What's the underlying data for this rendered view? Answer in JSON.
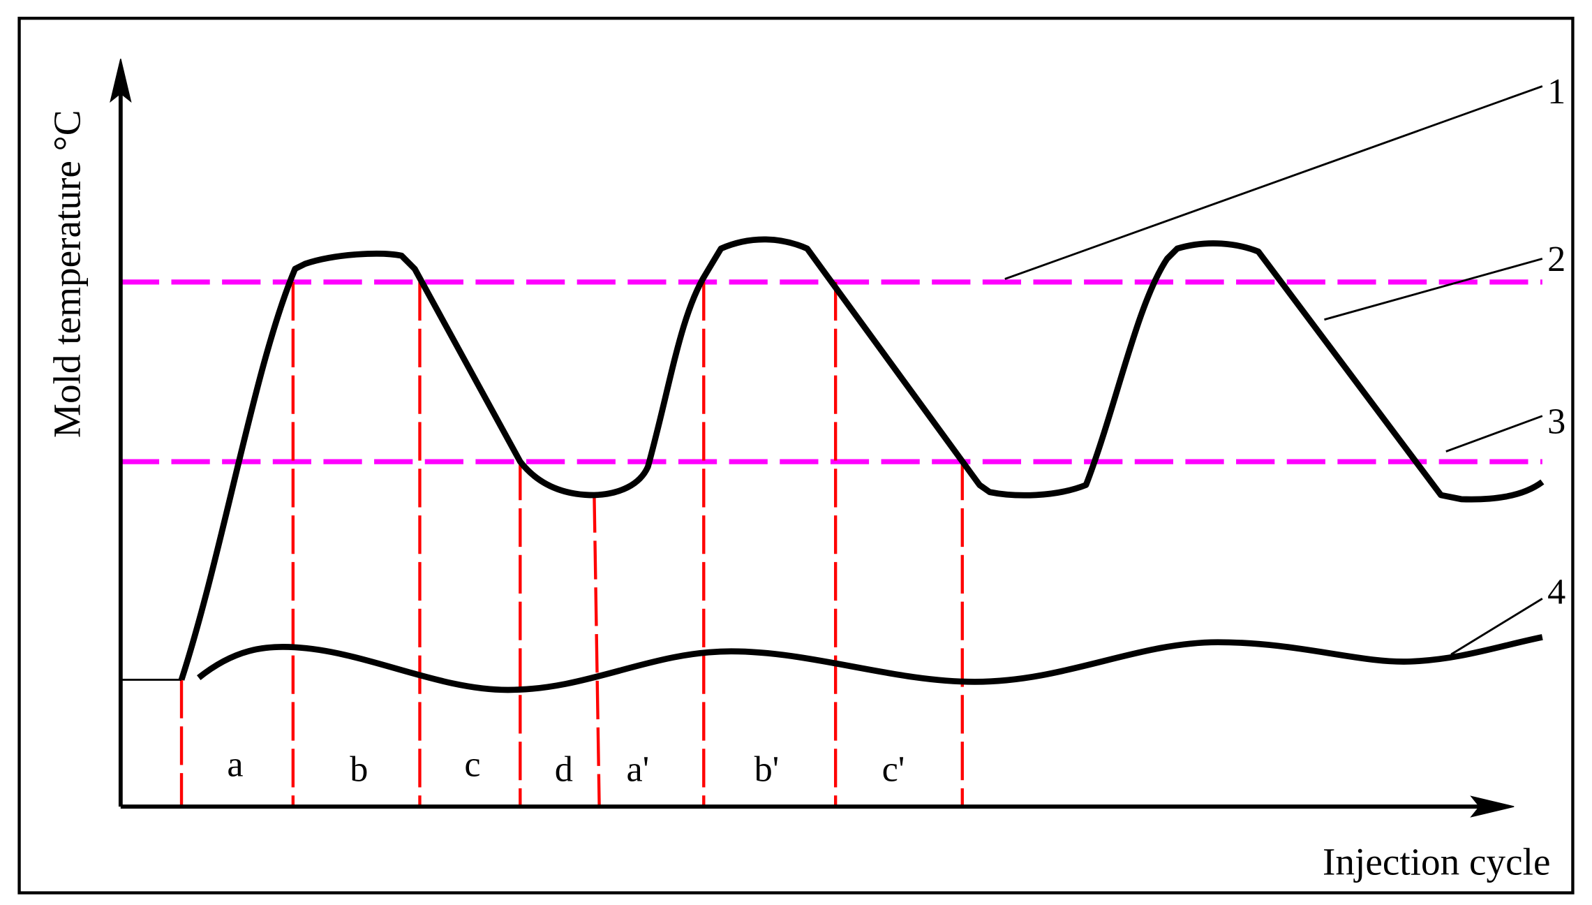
{
  "axes": {
    "y_label": "Mold temperature °C",
    "x_label": "Injection cycle"
  },
  "curve_labels": [
    "1",
    "2",
    "3",
    "4"
  ],
  "phases": [
    "a",
    "b",
    "c",
    "d",
    "a'",
    "b'",
    "c'"
  ]
}
